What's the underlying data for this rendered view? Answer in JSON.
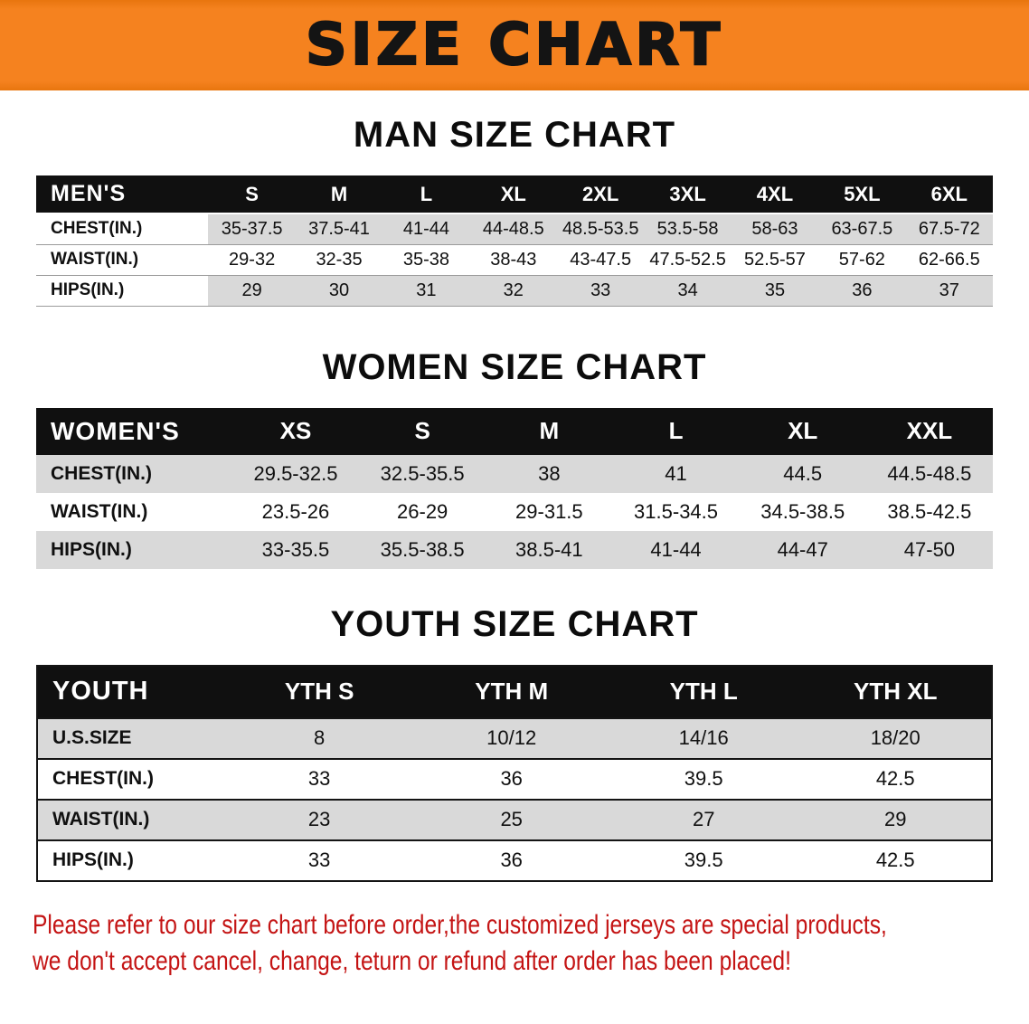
{
  "banner": {
    "title": "SIZE CHART"
  },
  "colors": {
    "banner_bg": "#f5821f",
    "header_bg": "#101010",
    "stripe": "#d9d9d9",
    "note_red": "#c41414"
  },
  "chart_data": [
    {
      "type": "table",
      "title": "MAN SIZE CHART",
      "columns": [
        "MEN'S",
        "S",
        "M",
        "L",
        "XL",
        "2XL",
        "3XL",
        "4XL",
        "5XL",
        "6XL"
      ],
      "rows": [
        [
          "CHEST(IN.)",
          "35-37.5",
          "37.5-41",
          "41-44",
          "44-48.5",
          "48.5-53.5",
          "53.5-58",
          "58-63",
          "63-67.5",
          "67.5-72"
        ],
        [
          "WAIST(IN.)",
          "29-32",
          "32-35",
          "35-38",
          "38-43",
          "43-47.5",
          "47.5-52.5",
          "52.5-57",
          "57-62",
          "62-66.5"
        ],
        [
          "HIPS(IN.)",
          "29",
          "30",
          "31",
          "32",
          "33",
          "34",
          "35",
          "36",
          "37"
        ]
      ]
    },
    {
      "type": "table",
      "title": "WOMEN SIZE CHART",
      "columns": [
        "WOMEN'S",
        "XS",
        "S",
        "M",
        "L",
        "XL",
        "XXL"
      ],
      "rows": [
        [
          "CHEST(IN.)",
          "29.5-32.5",
          "32.5-35.5",
          "38",
          "41",
          "44.5",
          "44.5-48.5"
        ],
        [
          "WAIST(IN.)",
          "23.5-26",
          "26-29",
          "29-31.5",
          "31.5-34.5",
          "34.5-38.5",
          "38.5-42.5"
        ],
        [
          "HIPS(IN.)",
          "33-35.5",
          "35.5-38.5",
          "38.5-41",
          "41-44",
          "44-47",
          "47-50"
        ]
      ]
    },
    {
      "type": "table",
      "title": "YOUTH SIZE CHART",
      "columns": [
        "YOUTH",
        "YTH S",
        "YTH M",
        "YTH L",
        "YTH XL"
      ],
      "rows": [
        [
          "U.S.SIZE",
          "8",
          "10/12",
          "14/16",
          "18/20"
        ],
        [
          "CHEST(IN.)",
          "33",
          "36",
          "39.5",
          "42.5"
        ],
        [
          "WAIST(IN.)",
          "23",
          "25",
          "27",
          "29"
        ],
        [
          "HIPS(IN.)",
          "33",
          "36",
          "39.5",
          "42.5"
        ]
      ]
    }
  ],
  "note": {
    "line1": "Please refer to our size chart before order,the customized jerseys are special products,",
    "line2": "we don't accept cancel, change, teturn or refund after order has been placed!"
  }
}
